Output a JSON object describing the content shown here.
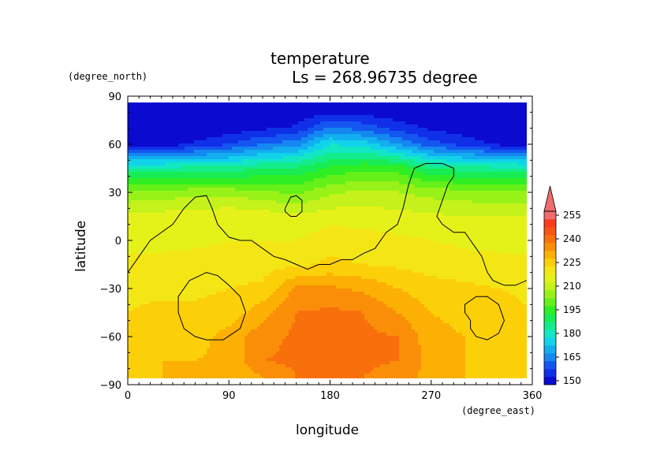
{
  "chart_data": {
    "type": "heatmap",
    "title": "temperature",
    "subtitle": "Ls = 268.96735 degree",
    "xlabel": "longitude",
    "ylabel": "latitude",
    "x_unit": "(degree_east)",
    "y_unit": "(degree_north)",
    "xlim": [
      0,
      360
    ],
    "ylim": [
      -90,
      90
    ],
    "x_ticks": [
      0,
      90,
      180,
      270,
      360
    ],
    "y_ticks": [
      -90,
      -60,
      -30,
      0,
      30,
      60,
      90
    ],
    "colorbar": {
      "levels": [
        150,
        155,
        160,
        165,
        170,
        175,
        180,
        185,
        190,
        195,
        200,
        205,
        210,
        215,
        220,
        225,
        230,
        235,
        240,
        245,
        250,
        255
      ],
      "tick_labels": [
        150,
        165,
        180,
        195,
        210,
        225,
        240,
        255
      ],
      "colors": [
        "#0a0ad0",
        "#1030e8",
        "#1456f0",
        "#1488f0",
        "#12aef0",
        "#12d2ea",
        "#12e8c4",
        "#14ec8c",
        "#18ec54",
        "#30ee24",
        "#64f018",
        "#98f218",
        "#c4f21a",
        "#e4f21a",
        "#f4e614",
        "#fcd008",
        "#fcb004",
        "#fa8e08",
        "#f8700c",
        "#f85414",
        "#f83c1e",
        "#f06c6c"
      ],
      "extend": "max",
      "location": "right"
    },
    "temperature_field": {
      "lon": [
        0,
        30,
        60,
        90,
        120,
        150,
        180,
        210,
        240,
        270,
        300,
        330,
        360
      ],
      "lat": [
        -85,
        -75,
        -60,
        -45,
        -30,
        -15,
        0,
        15,
        30,
        45,
        60,
        70,
        85
      ],
      "values": [
        [
          228,
          230,
          230,
          230,
          235,
          240,
          240,
          240,
          238,
          233,
          230,
          228,
          228
        ],
        [
          228,
          230,
          230,
          231,
          240,
          241,
          241,
          241,
          240,
          233,
          230,
          229,
          228
        ],
        [
          227,
          227,
          228,
          232,
          238,
          241,
          241,
          241,
          240,
          232,
          230,
          228,
          227
        ],
        [
          225,
          226,
          226,
          227,
          233,
          240,
          241,
          240,
          235,
          230,
          228,
          227,
          225
        ],
        [
          224,
          224,
          224,
          225,
          226,
          236,
          236,
          234,
          230,
          227,
          226,
          225,
          224
        ],
        [
          222,
          222,
          222,
          222,
          223,
          224,
          226,
          225,
          224,
          223,
          222,
          222,
          222
        ],
        [
          218,
          218,
          219,
          220,
          220,
          220,
          223,
          222,
          221,
          220,
          219,
          218,
          218
        ],
        [
          216,
          217,
          218,
          219,
          218,
          216,
          218,
          218,
          217,
          216,
          215,
          215,
          216
        ],
        [
          206,
          207,
          208,
          208,
          206,
          204,
          209,
          211,
          210,
          208,
          207,
          206,
          206
        ],
        [
          186,
          186,
          187,
          187,
          190,
          191,
          196,
          199,
          198,
          190,
          188,
          186,
          186
        ],
        [
          152,
          152,
          156,
          160,
          165,
          168,
          180,
          178,
          170,
          162,
          158,
          154,
          152
        ],
        [
          150,
          150,
          150,
          152,
          154,
          156,
          166,
          163,
          158,
          154,
          152,
          150,
          150
        ],
        [
          148,
          148,
          148,
          148,
          148,
          148,
          148,
          148,
          148,
          148,
          148,
          148,
          148
        ]
      ]
    },
    "contours": [
      [
        [
          0,
          -20
        ],
        [
          10,
          -10
        ],
        [
          20,
          0
        ],
        [
          40,
          10
        ],
        [
          50,
          20
        ],
        [
          60,
          27
        ],
        [
          70,
          28
        ],
        [
          75,
          20
        ],
        [
          80,
          10
        ],
        [
          90,
          2
        ],
        [
          100,
          0
        ],
        [
          110,
          0
        ],
        [
          120,
          -5
        ],
        [
          130,
          -10
        ],
        [
          140,
          -12
        ],
        [
          150,
          -15
        ],
        [
          160,
          -18
        ],
        [
          170,
          -15
        ],
        [
          180,
          -15
        ],
        [
          190,
          -12
        ],
        [
          200,
          -12
        ],
        [
          210,
          -8
        ],
        [
          220,
          -5
        ],
        [
          230,
          5
        ],
        [
          240,
          10
        ],
        [
          245,
          20
        ],
        [
          250,
          35
        ],
        [
          255,
          45
        ],
        [
          265,
          48
        ],
        [
          280,
          48
        ],
        [
          290,
          45
        ],
        [
          290,
          40
        ],
        [
          285,
          35
        ],
        [
          280,
          25
        ],
        [
          275,
          15
        ],
        [
          280,
          10
        ],
        [
          290,
          5
        ],
        [
          300,
          5
        ],
        [
          305,
          0
        ],
        [
          310,
          -5
        ],
        [
          315,
          -10
        ],
        [
          320,
          -20
        ],
        [
          325,
          -25
        ],
        [
          335,
          -28
        ],
        [
          345,
          -28
        ],
        [
          355,
          -25
        ],
        [
          360,
          -23
        ]
      ],
      [
        [
          140,
          20
        ],
        [
          145,
          27
        ],
        [
          150,
          28
        ],
        [
          155,
          25
        ],
        [
          155,
          18
        ],
        [
          150,
          15
        ],
        [
          145,
          15
        ],
        [
          140,
          18
        ],
        [
          140,
          20
        ]
      ],
      [
        [
          50,
          -55
        ],
        [
          45,
          -45
        ],
        [
          45,
          -35
        ],
        [
          55,
          -25
        ],
        [
          70,
          -20
        ],
        [
          80,
          -22
        ],
        [
          90,
          -28
        ],
        [
          100,
          -35
        ],
        [
          105,
          -45
        ],
        [
          100,
          -55
        ],
        [
          85,
          -62
        ],
        [
          70,
          -62
        ],
        [
          60,
          -60
        ],
        [
          50,
          -55
        ]
      ],
      [
        [
          305,
          -50
        ],
        [
          300,
          -45
        ],
        [
          300,
          -40
        ],
        [
          310,
          -35
        ],
        [
          320,
          -35
        ],
        [
          330,
          -40
        ],
        [
          335,
          -50
        ],
        [
          330,
          -58
        ],
        [
          320,
          -62
        ],
        [
          310,
          -60
        ],
        [
          305,
          -55
        ],
        [
          305,
          -50
        ]
      ]
    ]
  }
}
